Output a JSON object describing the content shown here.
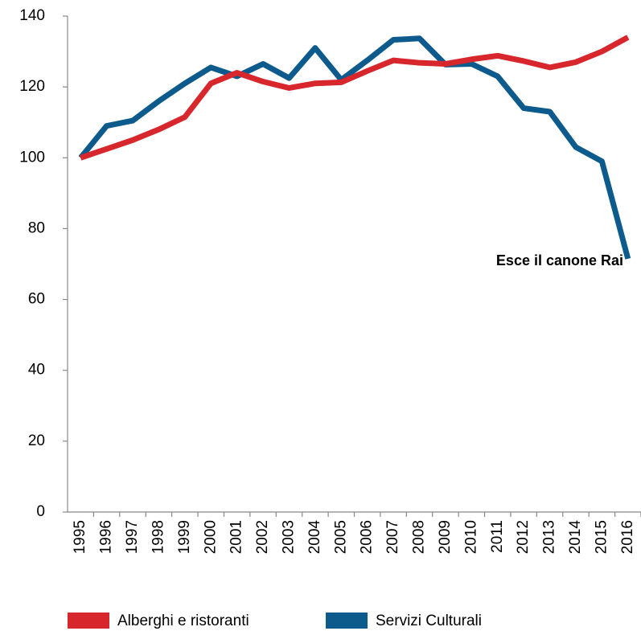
{
  "chart_data": {
    "type": "line",
    "categories": [
      "1995",
      "1996",
      "1997",
      "1998",
      "1999",
      "2000",
      "2001",
      "2002",
      "2003",
      "2004",
      "2005",
      "2006",
      "2007",
      "2008",
      "2009",
      "2010",
      "2011",
      "2012",
      "2013",
      "2014",
      "2015",
      "2016"
    ],
    "series": [
      {
        "name": "Alberghi e ristoranti",
        "color": "#d7262c",
        "values": [
          100,
          102.5,
          105,
          108,
          111.5,
          121,
          124,
          121.5,
          119.7,
          121,
          121.3,
          124.5,
          127.5,
          126.8,
          126.5,
          127.8,
          128.8,
          127.3,
          125.5,
          127,
          130,
          134
        ]
      },
      {
        "name": "Servizi Culturali",
        "color": "#0d5a8c",
        "values": [
          100,
          109,
          110.5,
          116,
          121,
          125.5,
          123,
          126.5,
          122.5,
          131,
          122,
          127.5,
          133.3,
          133.7,
          126.3,
          126.5,
          123,
          114,
          113,
          103,
          99,
          71.5
        ]
      }
    ],
    "annotation": "Esce il canone Rai",
    "ylim": [
      0,
      140
    ],
    "yticks": [
      0,
      20,
      40,
      60,
      80,
      100,
      120,
      140
    ],
    "grid": false,
    "legend": "bottom"
  }
}
